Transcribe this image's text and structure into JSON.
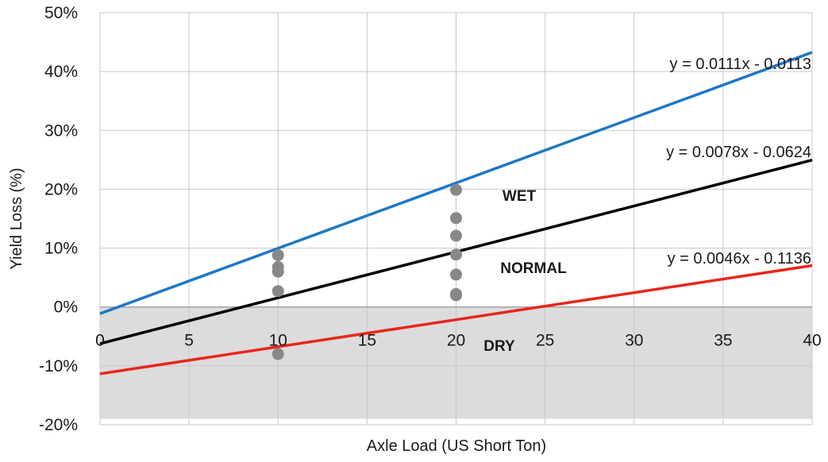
{
  "chart_data": {
    "type": "scatter",
    "title": "",
    "xlabel": "Axle Load (US Short Ton)",
    "ylabel": "Yield Loss (%)",
    "xlim": [
      0,
      40
    ],
    "ylim": [
      -0.2,
      0.5
    ],
    "x_ticks": [
      0,
      5,
      10,
      15,
      20,
      25,
      30,
      35,
      40
    ],
    "y_ticks": [
      -0.2,
      -0.1,
      0,
      0.1,
      0.2,
      0.3,
      0.4,
      0.5
    ],
    "x_tick_labels": [
      "0",
      "5",
      "10",
      "15",
      "20",
      "25",
      "30",
      "35",
      "40"
    ],
    "y_tick_labels": [
      "-20%",
      "-10%",
      "0%",
      "10%",
      "20%",
      "30%",
      "40%",
      "50%"
    ],
    "grid": true,
    "shaded_region": {
      "y_from": -0.19,
      "y_to": 0.0,
      "color": "#dcdcdc"
    },
    "points": {
      "color": "#888888",
      "data": [
        {
          "x": 10,
          "y": 0.088
        },
        {
          "x": 10,
          "y": 0.068
        },
        {
          "x": 10,
          "y": 0.06
        },
        {
          "x": 10,
          "y": 0.027
        },
        {
          "x": 10,
          "y": -0.08
        },
        {
          "x": 20,
          "y": 0.199
        },
        {
          "x": 20,
          "y": 0.151
        },
        {
          "x": 20,
          "y": 0.121
        },
        {
          "x": 20,
          "y": 0.089
        },
        {
          "x": 20,
          "y": 0.055
        },
        {
          "x": 20,
          "y": 0.022
        },
        {
          "x": 20,
          "y": 0.02
        }
      ]
    },
    "trendlines": [
      {
        "zone": "WET",
        "slope": 0.0111,
        "intercept": -0.0113,
        "color": "#1f77c4",
        "equation": "y = 0.0111x - 0.0113"
      },
      {
        "zone": "NORMAL",
        "slope": 0.0078,
        "intercept": -0.0624,
        "color": "#000000",
        "equation": "y = 0.0078x - 0.0624"
      },
      {
        "zone": "DRY",
        "slope": 0.0046,
        "intercept": -0.1136,
        "color": "#e8261c",
        "equation": "y = 0.0046x - 0.1136"
      }
    ],
    "zone_labels": [
      "WET",
      "NORMAL",
      "DRY"
    ]
  }
}
